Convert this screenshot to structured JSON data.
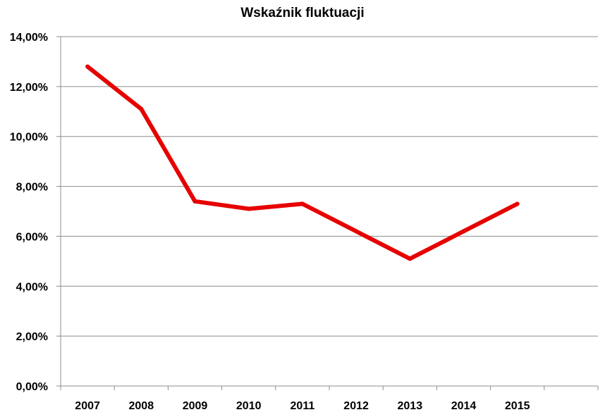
{
  "chart_data": {
    "type": "line",
    "title": "Wskaźnik fluktuacji",
    "xlabel": "",
    "ylabel": "",
    "categories": [
      "2007",
      "2008",
      "2009",
      "2010",
      "2011",
      "2012",
      "2013",
      "2014",
      "2015",
      ""
    ],
    "series": [
      {
        "color": "#e60000",
        "values": [
          12.8,
          11.1,
          7.4,
          7.1,
          7.3,
          6.2,
          5.1,
          6.2,
          7.3,
          null
        ]
      }
    ],
    "ylim": [
      0,
      14
    ],
    "yticks": [
      "0,00%",
      "2,00%",
      "4,00%",
      "6,00%",
      "8,00%",
      "10,00%",
      "12,00%",
      "14,00%"
    ],
    "grid": true,
    "legend": "none"
  }
}
